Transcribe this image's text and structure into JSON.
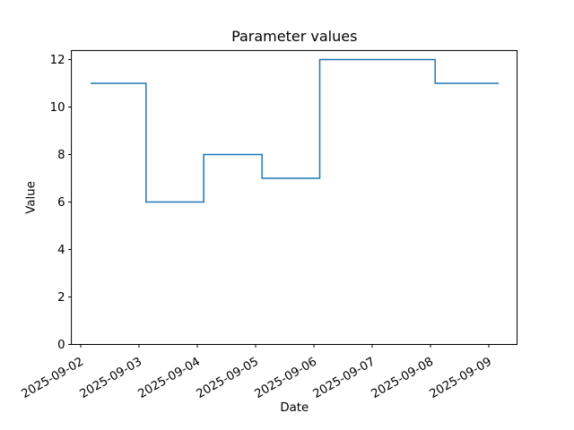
{
  "figure": {
    "background_color": "#ffffff",
    "spine_color": "#000000",
    "text_color": "#000000"
  },
  "chart_data": {
    "type": "line",
    "style": "step-post",
    "title": "Parameter values",
    "xlabel": "Date",
    "ylabel": "Value",
    "grid": false,
    "legend": false,
    "line_color": "#1f77b4",
    "x_tick_labels": [
      "2025-09-02",
      "2025-09-03",
      "2025-09-04",
      "2025-09-05",
      "2025-09-06",
      "2025-09-07",
      "2025-09-08",
      "2025-09-09"
    ],
    "x_tick_days": [
      0,
      1,
      2,
      3,
      4,
      5,
      6,
      7
    ],
    "y_ticks": [
      0,
      2,
      4,
      6,
      8,
      10,
      12
    ],
    "ylim": [
      0,
      12.38
    ],
    "xlim_days": [
      -0.16,
      7.485
    ],
    "series": [
      {
        "name": "parameter-values",
        "points": [
          {
            "date": "2025-09-02",
            "day": 0.17,
            "value": 11
          },
          {
            "date": "2025-09-03",
            "day": 1.12,
            "value": 6
          },
          {
            "date": "2025-09-04",
            "day": 2.11,
            "value": 8
          },
          {
            "date": "2025-09-05",
            "day": 3.11,
            "value": 7
          },
          {
            "date": "2025-09-06",
            "day": 4.1,
            "value": 12
          },
          {
            "date": "2025-09-08",
            "day": 6.08,
            "value": 11
          },
          {
            "date": "2025-09-09",
            "day": 7.17,
            "value": 11
          }
        ]
      }
    ]
  }
}
